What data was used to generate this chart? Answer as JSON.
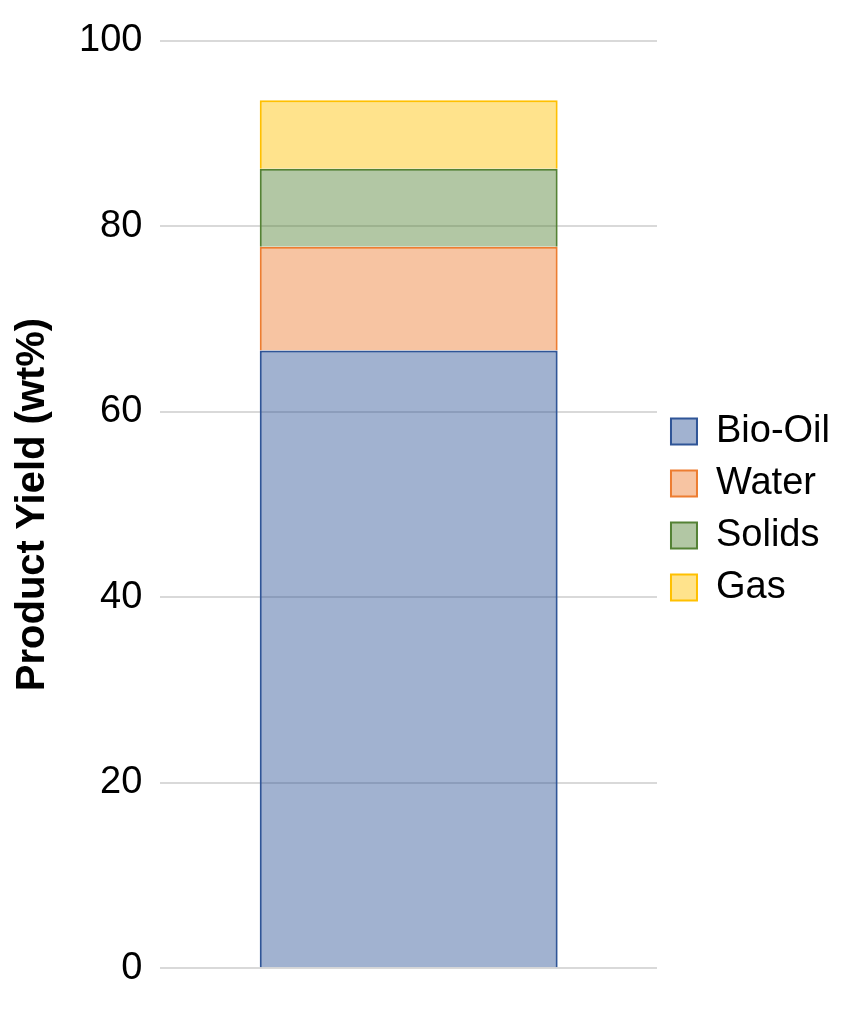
{
  "chart_data": {
    "type": "bar",
    "ylabel": "Product Yield (wt%)",
    "categories": [
      null
    ],
    "stacked": true,
    "series": [
      {
        "name": "Bio-Oil",
        "color": "#2f5597",
        "values": [
          66.6
        ]
      },
      {
        "name": "Water",
        "color": "#ed7d31",
        "values": [
          11.2
        ]
      },
      {
        "name": "Solids",
        "color": "#548235",
        "values": [
          8.4
        ]
      },
      {
        "name": "Gas",
        "color": "#ffc000",
        "values": [
          7.4
        ]
      }
    ],
    "ylim": [
      0,
      100
    ],
    "yticks": [
      0,
      20,
      40,
      60,
      80,
      100
    ],
    "grid": "y",
    "legend": "right"
  }
}
